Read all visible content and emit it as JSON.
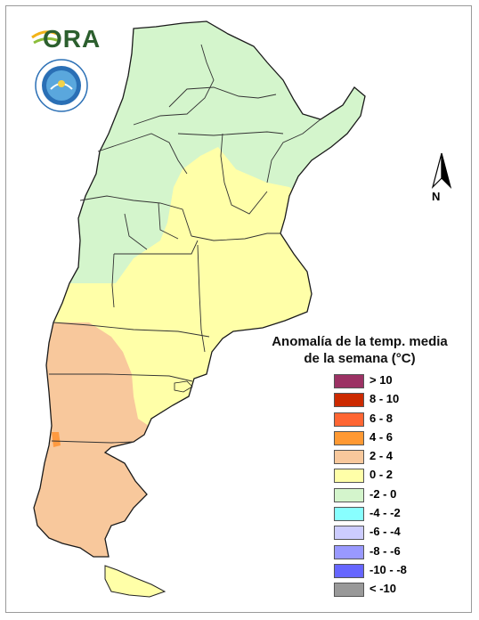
{
  "map": {
    "legend_title_line1": "Anomalía de la temp. media",
    "legend_title_line2": "de la semana (°C)",
    "north_label": "N",
    "logo_text": "ORA",
    "colors": {
      "yellow": "#FFFFA8",
      "green": "#D4F5CC",
      "peach": "#F8C89C",
      "orange": "#FF9A40"
    },
    "legend": [
      {
        "label": "> 10",
        "color": "#9C3264"
      },
      {
        "label": "8 - 10",
        "color": "#CC2A00"
      },
      {
        "label": "6 - 8",
        "color": "#FF6633"
      },
      {
        "label": "4 - 6",
        "color": "#FF9933"
      },
      {
        "label": "2 - 4",
        "color": "#F8C89C"
      },
      {
        "label": "0 - 2",
        "color": "#FFFFA8"
      },
      {
        "label": "-2 - 0",
        "color": "#D4F5CC"
      },
      {
        "label": "-4 - -2",
        "color": "#88FFFF"
      },
      {
        "label": "-6 - -4",
        "color": "#CCCCFF"
      },
      {
        "label": "-8 - -6",
        "color": "#9999FF"
      },
      {
        "label": "-10 - -8",
        "color": "#6666FF"
      },
      {
        "label": "< -10",
        "color": "#999999"
      }
    ]
  }
}
